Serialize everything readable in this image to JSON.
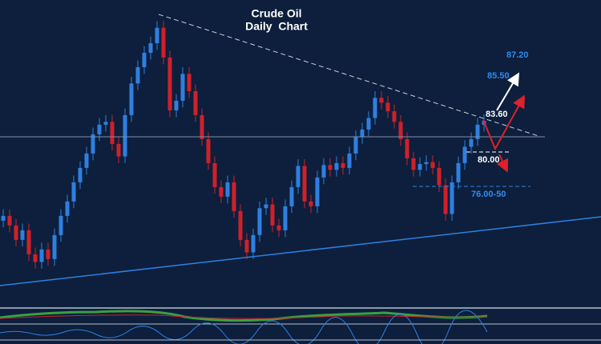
{
  "chart_data": {
    "type": "candlestick",
    "title": "Crude Oil",
    "subtitle": "Daily  Chart",
    "up_color": "#2f7fe0",
    "down_color": "#d0202a",
    "ylim": [
      63.4,
      95.5
    ],
    "open": [
      72.5,
      73.0,
      72.0,
      70.5,
      71.5,
      69.0,
      68.2,
      69.5,
      68.5,
      71.0,
      73.0,
      74.5,
      76.5,
      78.0,
      79.5,
      81.5,
      82.5,
      82.8,
      80.5,
      79.2,
      83.5,
      86.8,
      88.5,
      90.0,
      91.0,
      92.6,
      89.5,
      84.0,
      85.0,
      87.8,
      86.0,
      83.5,
      81.0,
      78.5,
      76.0,
      75.0,
      76.5,
      73.5,
      70.5,
      69.2,
      71.0,
      73.8,
      74.2,
      72.0,
      71.5,
      74.0,
      76.0,
      78.2,
      74.5,
      74.0,
      77.0,
      78.3,
      77.8,
      78.5,
      78.0,
      79.5,
      81.2,
      82.0,
      83.2,
      85.3,
      84.8,
      83.9,
      82.8,
      81.0,
      79.0,
      77.8,
      78.4,
      78.6,
      78.0,
      76.2,
      73.2,
      76.5,
      78.5,
      80.2,
      81.0,
      82.5
    ],
    "high": [
      73.7,
      73.7,
      72.7,
      72.2,
      72.2,
      69.7,
      70.2,
      70.2,
      71.7,
      73.7,
      75.2,
      77.2,
      78.7,
      80.2,
      82.2,
      83.2,
      83.5,
      83.5,
      81.2,
      84.2,
      87.5,
      89.2,
      90.7,
      91.7,
      93.3,
      93.3,
      90.2,
      85.7,
      88.5,
      88.5,
      86.7,
      84.2,
      81.7,
      79.2,
      76.7,
      77.2,
      77.2,
      74.2,
      71.2,
      71.7,
      74.5,
      74.9,
      74.9,
      72.7,
      74.7,
      76.7,
      78.9,
      78.9,
      75.2,
      77.7,
      79.0,
      79.0,
      79.2,
      79.2,
      80.2,
      81.9,
      82.7,
      83.9,
      86.0,
      86.0,
      85.5,
      84.6,
      83.5,
      81.7,
      79.7,
      79.1,
      79.3,
      79.3,
      78.7,
      76.9,
      77.2,
      79.2,
      80.9,
      81.7,
      83.2,
      83.6
    ],
    "low": [
      71.8,
      71.3,
      69.8,
      69.8,
      68.3,
      67.5,
      67.5,
      67.8,
      67.8,
      70.3,
      72.3,
      73.8,
      75.8,
      77.3,
      78.8,
      80.8,
      81.8,
      79.8,
      78.5,
      78.5,
      82.8,
      86.1,
      87.8,
      89.3,
      90.3,
      88.8,
      83.3,
      83.3,
      84.3,
      85.3,
      82.8,
      80.3,
      77.8,
      75.3,
      74.3,
      74.3,
      72.8,
      69.8,
      68.5,
      68.5,
      70.3,
      73.1,
      71.3,
      70.8,
      70.8,
      73.3,
      75.3,
      73.8,
      73.3,
      73.3,
      76.3,
      77.1,
      77.1,
      77.3,
      77.3,
      78.8,
      80.5,
      81.3,
      82.5,
      84.1,
      83.2,
      82.1,
      80.3,
      78.3,
      77.1,
      77.1,
      77.7,
      77.3,
      75.5,
      72.5,
      72.5,
      75.8,
      77.8,
      79.5,
      80.3,
      81.8
    ],
    "close": [
      73.0,
      72.0,
      70.5,
      71.5,
      69.0,
      68.2,
      69.5,
      68.5,
      71.0,
      73.0,
      74.5,
      76.5,
      78.0,
      79.5,
      81.5,
      82.5,
      82.8,
      80.5,
      79.2,
      83.5,
      86.8,
      88.5,
      90.0,
      91.0,
      92.6,
      89.5,
      84.0,
      85.0,
      87.8,
      86.0,
      83.5,
      81.0,
      78.5,
      76.0,
      75.0,
      76.5,
      73.5,
      70.5,
      69.2,
      71.0,
      73.8,
      74.2,
      72.0,
      71.5,
      74.0,
      76.0,
      78.2,
      74.5,
      74.0,
      77.0,
      78.3,
      77.8,
      78.5,
      78.0,
      79.5,
      81.2,
      82.0,
      83.2,
      85.3,
      84.8,
      83.9,
      82.8,
      81.0,
      79.0,
      77.8,
      78.4,
      78.6,
      78.0,
      76.2,
      73.2,
      76.5,
      78.5,
      80.2,
      81.0,
      82.5,
      82.9
    ],
    "annotations": [
      "87.20",
      "85.50",
      "83.60",
      "80.00",
      "76.00-50"
    ]
  }
}
